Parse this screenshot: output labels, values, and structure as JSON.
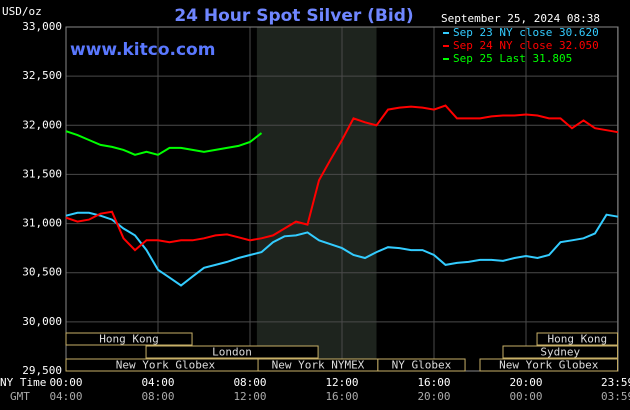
{
  "chart_data": {
    "type": "line",
    "title": "24 Hour Spot Silver (Bid)",
    "watermark": "www.kitco.com",
    "ylabel": "USD/oz",
    "timestamp": "September 25, 2024 08:38",
    "x_row_label": "NY Time",
    "x2_row_label": "GMT",
    "x": [
      0,
      0.5,
      1,
      1.5,
      2,
      2.5,
      3,
      3.5,
      4,
      4.5,
      5,
      5.5,
      6,
      6.5,
      7,
      7.5,
      8,
      8.5,
      9,
      9.5,
      10,
      10.5,
      11,
      11.5,
      12,
      12.5,
      13,
      13.5,
      14,
      14.5,
      15,
      15.5,
      16,
      16.5,
      17,
      17.5,
      18,
      18.5,
      19,
      19.5,
      20,
      20.5,
      21,
      21.5,
      22,
      22.5,
      23,
      23.5,
      24
    ],
    "xlim": [
      0,
      24
    ],
    "xticks": [
      {
        "value": 0,
        "label": "00:00"
      },
      {
        "value": 4,
        "label": "04:00"
      },
      {
        "value": 8,
        "label": "08:00"
      },
      {
        "value": 12,
        "label": "12:00"
      },
      {
        "value": 16,
        "label": "16:00"
      },
      {
        "value": 20,
        "label": "20:00"
      },
      {
        "value": 23.983,
        "label": "23:59"
      }
    ],
    "x2ticks": [
      {
        "value": 0,
        "label": "04:00"
      },
      {
        "value": 4,
        "label": "08:00"
      },
      {
        "value": 8,
        "label": "12:00"
      },
      {
        "value": 12,
        "label": "16:00"
      },
      {
        "value": 16,
        "label": "20:00"
      },
      {
        "value": 20,
        "label": "00:00"
      },
      {
        "value": 23.983,
        "label": "03:59"
      }
    ],
    "ylim": [
      29.5,
      33.0
    ],
    "yticks": [
      {
        "value": 29.5,
        "label": "29,500"
      },
      {
        "value": 30,
        "label": "30,000"
      },
      {
        "value": 30.5,
        "label": "30,500"
      },
      {
        "value": 31,
        "label": "31,000"
      },
      {
        "value": 31.5,
        "label": "31,500"
      },
      {
        "value": 32,
        "label": "32,000"
      },
      {
        "value": 32.5,
        "label": "32,500"
      },
      {
        "value": 33,
        "label": "33,000"
      }
    ],
    "grid": true,
    "shaded_range": [
      8.3,
      13.5
    ],
    "sessions": [
      {
        "name": "Hong Kong",
        "row": 0,
        "start": 0,
        "end": 5.48
      },
      {
        "name": "Hong Kong",
        "row": 0,
        "start": 20.48,
        "end": 23.98
      },
      {
        "name": "London",
        "row": 1,
        "start": 3.48,
        "end": 10.96
      },
      {
        "name": "Sydney",
        "row": 1,
        "start": 19.0,
        "end": 23.98
      },
      {
        "name": "New York Globex",
        "row": 2,
        "start": 0,
        "end": 8.65
      },
      {
        "name": "New York NYMEX",
        "row": 2,
        "start": 8.35,
        "end": 13.56
      },
      {
        "name": "NY Globex",
        "row": 2,
        "start": 13.56,
        "end": 17.35
      },
      {
        "name": "New York Globex",
        "row": 2,
        "start": 18.0,
        "end": 23.98
      }
    ],
    "series": [
      {
        "name": "Sep 23 NY close 30.620",
        "color": "#33ccff",
        "values": [
          31.08,
          31.11,
          31.11,
          31.08,
          31.04,
          30.95,
          30.88,
          30.73,
          30.53,
          30.45,
          30.37,
          30.46,
          30.55,
          30.58,
          30.61,
          30.65,
          30.68,
          30.71,
          30.81,
          30.87,
          30.88,
          30.91,
          30.83,
          30.79,
          30.75,
          30.68,
          30.65,
          30.71,
          30.76,
          30.75,
          30.73,
          30.73,
          30.68,
          30.58,
          30.6,
          30.61,
          30.63,
          30.63,
          30.62,
          30.65,
          30.67,
          30.65,
          30.68,
          30.81,
          30.83,
          30.85,
          30.9,
          31.09,
          31.07
        ]
      },
      {
        "name": "Sep 24 NY close 32.050",
        "color": "#ff0000",
        "values": [
          31.06,
          31.02,
          31.04,
          31.1,
          31.12,
          30.85,
          30.73,
          30.83,
          30.83,
          30.81,
          30.83,
          30.83,
          30.85,
          30.88,
          30.89,
          30.86,
          30.83,
          30.85,
          30.88,
          30.95,
          31.02,
          30.99,
          31.44,
          31.65,
          31.85,
          32.07,
          32.03,
          32.0,
          32.16,
          32.18,
          32.19,
          32.18,
          32.16,
          32.2,
          32.07,
          32.07,
          32.07,
          32.09,
          32.1,
          32.1,
          32.11,
          32.1,
          32.07,
          32.07,
          31.97,
          32.05,
          31.97,
          31.95,
          31.93
        ]
      },
      {
        "name": "Sep 25 Last 31.805",
        "color": "#00ff00",
        "values": [
          31.94,
          31.9,
          31.85,
          31.8,
          31.78,
          31.75,
          31.7,
          31.73,
          31.7,
          31.77,
          31.77,
          31.75,
          31.73,
          31.75,
          31.77,
          31.79,
          31.83,
          31.92,
          null,
          null,
          null,
          null,
          null,
          null,
          null,
          null,
          null,
          null,
          null,
          null,
          null,
          null,
          null,
          null,
          null,
          null,
          null,
          null,
          null,
          null,
          null,
          null,
          null,
          null,
          null,
          null,
          null,
          null,
          null
        ]
      }
    ]
  }
}
